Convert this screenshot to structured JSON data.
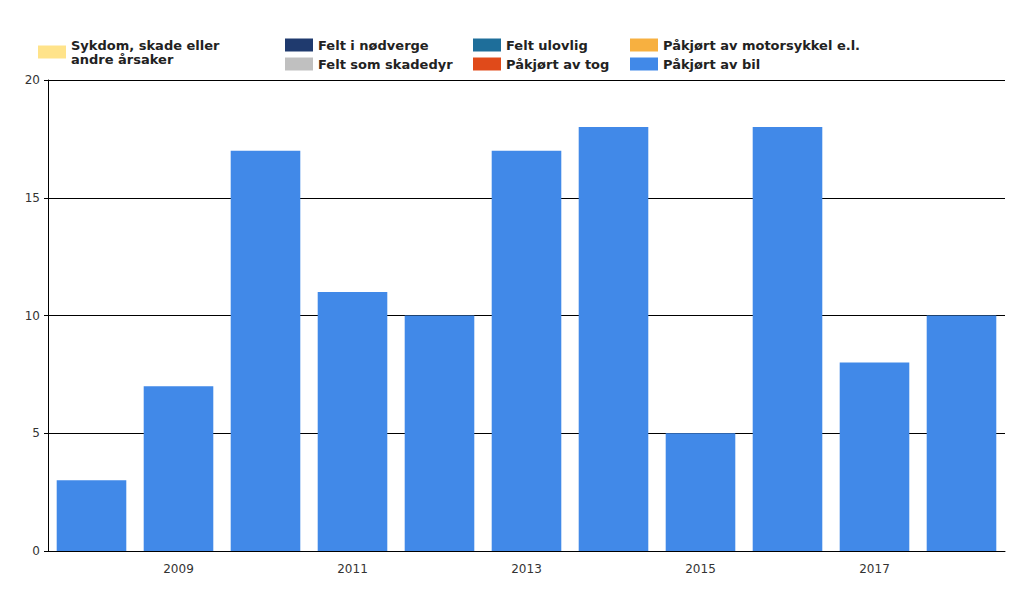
{
  "chart_data": {
    "type": "bar",
    "categories": [
      null,
      "2009",
      null,
      "2011",
      null,
      "2013",
      null,
      "2015",
      null,
      "2017",
      null
    ],
    "series": [
      {
        "name": "Sykdom, skade eller andre årsaker",
        "color": "#ffe38a",
        "values": [
          0,
          0,
          0,
          0,
          0,
          0,
          0,
          0,
          0,
          0,
          0
        ]
      },
      {
        "name": "Felt i nødverge",
        "color": "#1f3a6e",
        "values": [
          0,
          0,
          0,
          0,
          0,
          0,
          0,
          0,
          0,
          0,
          0
        ]
      },
      {
        "name": "Felt som skadedyr",
        "color": "#c0c0c0",
        "values": [
          0,
          0,
          0,
          0,
          0,
          0,
          0,
          0,
          0,
          0,
          0
        ]
      },
      {
        "name": "Felt ulovlig",
        "color": "#1e6e9a",
        "values": [
          0,
          0,
          0,
          0,
          0,
          0,
          0,
          0,
          0,
          0,
          0
        ]
      },
      {
        "name": "Påkjørt av tog",
        "color": "#e04a1a",
        "values": [
          0,
          0,
          0,
          0,
          0,
          0,
          0,
          0,
          0,
          0,
          0
        ]
      },
      {
        "name": "Påkjørt av motorsykkel e.l.",
        "color": "#f7b040",
        "values": [
          0,
          0,
          0,
          0,
          0,
          0,
          0,
          0,
          0,
          0,
          0
        ]
      },
      {
        "name": "Påkjørt av bil",
        "color": "#4189e8",
        "values": [
          3,
          7,
          17,
          11,
          10,
          17,
          18,
          5,
          18,
          8,
          10
        ]
      }
    ],
    "ylim": [
      0,
      20
    ],
    "yticks": [
      0,
      5,
      10,
      15,
      20
    ],
    "grid": true,
    "stacked": true,
    "legend": "top"
  }
}
